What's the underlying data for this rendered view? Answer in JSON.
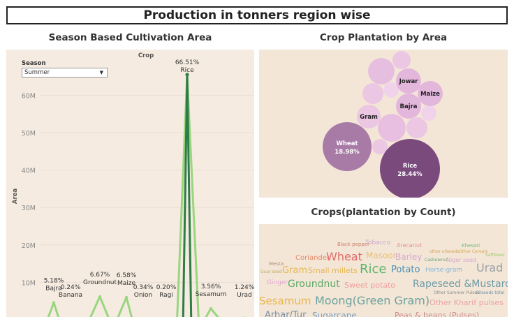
{
  "banner": {
    "title": "Production in tonners region wise"
  },
  "season_chart": {
    "title": "Season Based Cultivation Area",
    "filter_label": "Season",
    "filter_value": "Summer",
    "column_header": "Crop",
    "y_axis_label": "Area",
    "y_ticks": [
      "10M",
      "20M",
      "30M",
      "40M",
      "50M",
      "60M"
    ],
    "line_colors": {
      "main": "#9ad57f",
      "highlight": "#2e7d46"
    }
  },
  "chart_data": {
    "type": "line",
    "title": "Season Based Cultivation Area",
    "ylabel": "Area",
    "xlabel": "Crop",
    "ylim": [
      0,
      70000000
    ],
    "y_ticks": [
      10000000,
      20000000,
      30000000,
      40000000,
      50000000,
      60000000
    ],
    "points": [
      {
        "crop": "Bajra",
        "pct": "5.18%",
        "value": 4600000
      },
      {
        "crop": "Banana",
        "pct": "0.24%",
        "value": 0
      },
      {
        "crop": "Groundnut",
        "pct": "6.67%",
        "value": 6200000
      },
      {
        "crop": "Maize",
        "pct": "6.58%",
        "value": 6000000
      },
      {
        "crop": "Onion",
        "pct": "0.34%",
        "value": 0
      },
      {
        "crop": "Ragi",
        "pct": "0.20%",
        "value": 0
      },
      {
        "crop": "Rice",
        "pct": "66.51%",
        "value": 65500000
      },
      {
        "crop": "Sesamum",
        "pct": "3.56%",
        "value": 3000000
      },
      {
        "crop": "Urad",
        "pct": "1.24%",
        "value": 500000
      }
    ]
  },
  "bubble_chart": {
    "title": "Crop Plantation by Area",
    "bubbles": [
      {
        "label": "Rice",
        "value": "28.44%",
        "color": "#7a4a7d"
      },
      {
        "label": "Wheat",
        "value": "18.98%",
        "color": "#a87aa6"
      },
      {
        "label": "Jowar",
        "value": "",
        "color": "#e3b6dc"
      },
      {
        "label": "Maize",
        "value": "",
        "color": "#e3b6dc"
      },
      {
        "label": "Bajra",
        "value": "",
        "color": "#e3b6dc"
      },
      {
        "label": "Gram",
        "value": "",
        "color": "#ecc7e3"
      }
    ]
  },
  "word_cloud": {
    "title": "Crops(plantation by Count)",
    "words": [
      {
        "text": "Black pepper",
        "color": "#c97c6a"
      },
      {
        "text": "Tobacco",
        "color": "#c9a8c9"
      },
      {
        "text": "Arecanut",
        "color": "#e58fa3"
      },
      {
        "text": "Khesari",
        "color": "#6cba75"
      },
      {
        "text": "Coriander",
        "color": "#e58a6a"
      },
      {
        "text": "Wheat",
        "color": "#e26b6b"
      },
      {
        "text": "Masoor",
        "color": "#e8c07a"
      },
      {
        "text": "Barley",
        "color": "#d5a9d1"
      },
      {
        "text": "other oilseeds",
        "color": "#d0a35f"
      },
      {
        "text": "Other Cereals",
        "color": "#d4aa52"
      },
      {
        "text": "Safflower",
        "color": "#9cc96a"
      },
      {
        "text": "Cashewnut",
        "color": "#6a9e7d"
      },
      {
        "text": "Niger seed",
        "color": "#d5a9d1"
      },
      {
        "text": "Mesta",
        "color": "#b08f77"
      },
      {
        "text": "Gram",
        "color": "#e8b64d"
      },
      {
        "text": "Small millets",
        "color": "#e8b64d"
      },
      {
        "text": "Rice",
        "color": "#5db46d"
      },
      {
        "text": "Potato",
        "color": "#4a8fb3"
      },
      {
        "text": "Horse-gram",
        "color": "#89b6d8"
      },
      {
        "text": "Urad",
        "color": "#9aa0a8"
      },
      {
        "text": "Guar seed",
        "color": "#c2a75e"
      },
      {
        "text": "Ginger",
        "color": "#e3a4d4"
      },
      {
        "text": "Groundnut",
        "color": "#5ea968"
      },
      {
        "text": "Sweet potato",
        "color": "#ef9d9d"
      },
      {
        "text": "Rapeseed &Mustard",
        "color": "#6d9aa9"
      },
      {
        "text": "Other Summer Pulses",
        "color": "#8a8a8a"
      },
      {
        "text": "Oilseeds total",
        "color": "#6f8fa6"
      },
      {
        "text": "Sesamum",
        "color": "#e8b64d"
      },
      {
        "text": "Moong(Green Gram)",
        "color": "#6aa39f"
      },
      {
        "text": "Other Kharif pulses",
        "color": "#eba3a3"
      },
      {
        "text": "Arhar/Tur",
        "color": "#7a8ea8"
      },
      {
        "text": "Sugarcane",
        "color": "#7a9ec0"
      },
      {
        "text": "Peas & beans (Pulses)",
        "color": "#c98f8f"
      }
    ]
  }
}
